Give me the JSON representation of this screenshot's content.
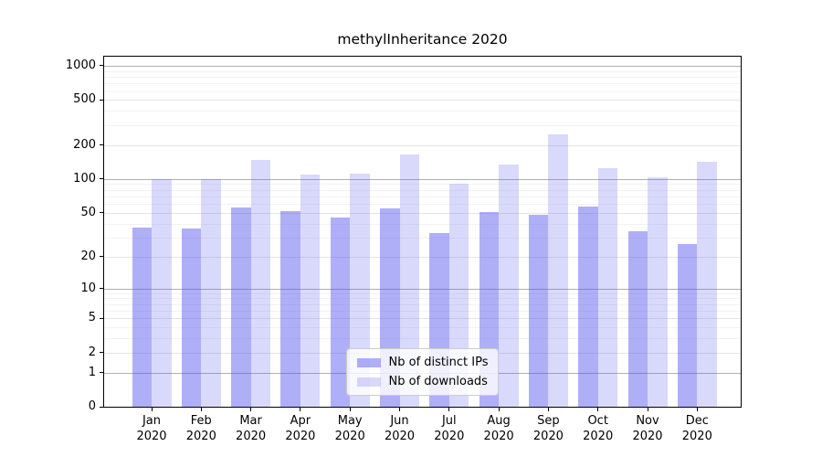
{
  "chart_data": {
    "type": "bar",
    "title": "methylInheritance 2020",
    "categories": [
      "Jan 2020",
      "Feb 2020",
      "Mar 2020",
      "Apr 2020",
      "May 2020",
      "Jun 2020",
      "Jul 2020",
      "Aug 2020",
      "Sep 2020",
      "Oct 2020",
      "Nov 2020",
      "Dec 2020"
    ],
    "series": [
      {
        "name": "Nb of distinct IPs",
        "color": "rgba(80,80,240,0.46)",
        "values": [
          37,
          36,
          56,
          52,
          45,
          55,
          33,
          51,
          48,
          57,
          34,
          26
        ]
      },
      {
        "name": "Nb of downloads",
        "color": "rgba(80,80,240,0.22)",
        "values": [
          100,
          100,
          148,
          110,
          112,
          165,
          90,
          135,
          248,
          124,
          103,
          143
        ]
      }
    ],
    "yscale": "log1p",
    "yticks": [
      0,
      1,
      2,
      5,
      10,
      20,
      50,
      100,
      200,
      500,
      1000
    ],
    "yticks_minor": [
      3,
      4,
      6,
      7,
      8,
      9,
      30,
      40,
      60,
      70,
      80,
      90,
      300,
      400,
      600,
      700,
      800,
      900
    ],
    "ylim": [
      0,
      1160
    ],
    "xlabel": "",
    "ylabel": "",
    "grid": true,
    "legend_position": "lower center"
  },
  "colors": {
    "bar_distinct_ips": "rgba(80,80,240,0.46)",
    "bar_downloads": "rgba(80,80,240,0.22)",
    "grid_decade": "#b0b0b0",
    "grid_tick": "#e4e4e4",
    "grid_minor": "#f2f2f2",
    "spine": "#000000",
    "text": "#000000",
    "legend_border": "#cccccc"
  }
}
